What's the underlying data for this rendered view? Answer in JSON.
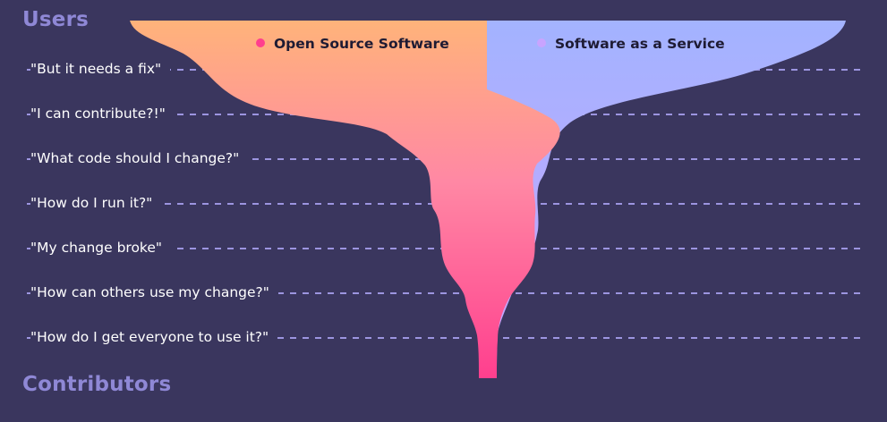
{
  "headings": {
    "top": "Users",
    "bottom": "Contributors"
  },
  "rows": [
    "\"But it needs a fix\"",
    "\"I can contribute?!\"",
    "\"What code should I change?\"",
    "\"How do I run it?\"",
    "\"My change broke\"",
    "\"How can others use my change?\"",
    "\"How do I get everyone to use it?\""
  ],
  "legend": {
    "oss": "Open Source Software",
    "saas": "Software as a Service"
  },
  "colors": {
    "background": "#3a365e",
    "heading": "#8f88d6",
    "guide_line": "#9c95e0",
    "oss_top": "#ffb37a",
    "oss_mid": "#ff88a4",
    "oss_bottom": "#ff3f8e",
    "saas_top": "#a3b3ff",
    "saas_bottom": "#c9a4ff",
    "oss_dot": "#ff3f8e",
    "saas_dot": "#c9a4ff"
  }
}
